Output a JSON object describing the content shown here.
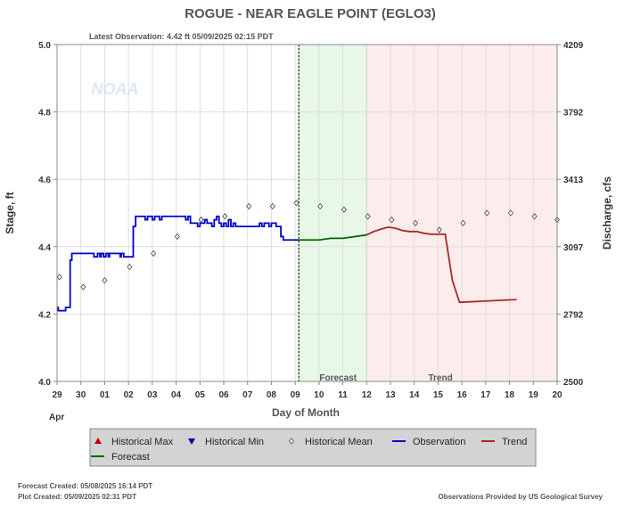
{
  "page": {
    "footer_forecast": "Forecast Created: 05/08/2025 16:14 PDT",
    "footer_plot": "Plot Created: 05/09/2025 02:31 PDT",
    "footer_credit": "Observations Provided by US Geological Survey",
    "watermark": "NOAA",
    "colors": {
      "observation": "#0000cc",
      "forecast": "#006600",
      "trend": "#a52a2a",
      "historical_max": "#cc0000",
      "historical_min": "#0000aa",
      "historical_mean": "#555555",
      "forecast_band": "#e8f8e8",
      "trend_band": "#fdecec",
      "legend_bg": "#d3d3d3"
    }
  },
  "chart_data": {
    "type": "line",
    "title": "ROGUE - NEAR EAGLE POINT  (EGLO3)",
    "subtitle": "Latest Observation: 4.42 ft 05/09/2025 02:15 PDT",
    "xlabel": "Day of Month",
    "ylabel": "Stage, ft",
    "y2label": "Discharge, cfs",
    "month_label": "Apr",
    "x_ticks": [
      "29",
      "30",
      "01",
      "02",
      "03",
      "04",
      "05",
      "06",
      "07",
      "08",
      "09",
      "10",
      "11",
      "12",
      "13",
      "14",
      "15",
      "16",
      "17",
      "18",
      "19",
      "20"
    ],
    "xlim": [
      0,
      21
    ],
    "ylim": [
      4.0,
      5.0
    ],
    "y_ticks": [
      "4.0",
      "4.2",
      "4.4",
      "4.6",
      "4.8",
      "5.0"
    ],
    "y2_ticks": [
      "2500",
      "2792",
      "3097",
      "3413",
      "3792",
      "4209"
    ],
    "grid": true,
    "forecast_region": {
      "label": "Forecast",
      "x_start": 10.15,
      "x_end": 13.0
    },
    "trend_region": {
      "label": "Trend",
      "x_start": 13.0,
      "x_end": 21.0
    },
    "now_x": 10.15,
    "legend": [
      {
        "label": "Historical Max",
        "marker": "triangle-up"
      },
      {
        "label": "Historical Min",
        "marker": "triangle-down"
      },
      {
        "label": "Historical Mean",
        "marker": "diamond"
      },
      {
        "label": "Observation",
        "marker": "line"
      },
      {
        "label": "Trend",
        "marker": "line"
      },
      {
        "label": "Forecast",
        "marker": "line"
      }
    ],
    "series": [
      {
        "name": "Observation",
        "x": [
          0.0,
          0.05,
          0.35,
          0.36,
          0.55,
          0.62,
          1.5,
          1.55,
          1.65,
          1.7,
          1.8,
          1.85,
          1.95,
          2.05,
          2.15,
          2.2,
          2.65,
          2.7,
          2.8,
          2.85,
          3.1,
          3.2,
          3.3,
          3.35,
          3.4,
          3.5,
          3.55,
          3.6,
          3.7,
          3.8,
          3.9,
          4.0,
          4.1,
          4.2,
          4.3,
          4.4,
          4.5,
          4.6,
          4.7,
          4.8,
          4.9,
          5.0,
          5.1,
          5.2,
          5.3,
          5.4,
          5.5,
          5.6,
          5.7,
          5.8,
          5.9,
          6.0,
          6.1,
          6.2,
          6.3,
          6.4,
          6.5,
          6.6,
          6.7,
          6.8,
          6.9,
          7.0,
          7.1,
          7.2,
          7.3,
          7.4,
          7.5,
          7.6,
          7.7,
          7.8,
          7.9,
          8.0,
          8.1,
          8.2,
          8.3,
          8.4,
          8.5,
          8.6,
          8.7,
          8.8,
          8.9,
          9.0,
          9.1,
          9.2,
          9.3,
          9.4,
          9.5,
          9.6,
          9.7,
          9.8,
          9.9,
          10.0,
          10.1,
          10.15
        ],
        "y": [
          4.22,
          4.21,
          4.21,
          4.22,
          4.36,
          4.38,
          4.38,
          4.37,
          4.37,
          4.38,
          4.37,
          4.38,
          4.37,
          4.38,
          4.37,
          4.38,
          4.37,
          4.38,
          4.37,
          4.37,
          4.37,
          4.46,
          4.49,
          4.49,
          4.49,
          4.49,
          4.49,
          4.49,
          4.48,
          4.49,
          4.49,
          4.48,
          4.49,
          4.49,
          4.48,
          4.49,
          4.49,
          4.49,
          4.49,
          4.49,
          4.49,
          4.49,
          4.49,
          4.49,
          4.49,
          4.48,
          4.49,
          4.47,
          4.47,
          4.47,
          4.46,
          4.47,
          4.47,
          4.48,
          4.47,
          4.47,
          4.46,
          4.48,
          4.49,
          4.47,
          4.46,
          4.47,
          4.46,
          4.48,
          4.46,
          4.47,
          4.46,
          4.46,
          4.46,
          4.46,
          4.46,
          4.46,
          4.46,
          4.46,
          4.46,
          4.46,
          4.47,
          4.46,
          4.47,
          4.47,
          4.46,
          4.47,
          4.47,
          4.46,
          4.46,
          4.43,
          4.42,
          4.42,
          4.42,
          4.42,
          4.42,
          4.42,
          4.42,
          4.42
        ]
      },
      {
        "name": "Forecast",
        "x": [
          10.15,
          10.5,
          11.0,
          11.5,
          12.0,
          12.5,
          13.0
        ],
        "y": [
          4.42,
          4.42,
          4.42,
          4.425,
          4.425,
          4.43,
          4.435
        ]
      },
      {
        "name": "Trend",
        "x": [
          13.0,
          13.3,
          13.6,
          13.9,
          14.2,
          14.5,
          14.8,
          15.1,
          15.4,
          15.7,
          16.0,
          16.3,
          16.6,
          16.9,
          17.2,
          17.5,
          17.8,
          18.1,
          18.4,
          18.7,
          19.0,
          19.3
        ],
        "y": [
          4.435,
          4.445,
          4.452,
          4.458,
          4.455,
          4.448,
          4.445,
          4.445,
          4.44,
          4.437,
          4.437,
          4.437,
          4.3,
          4.235,
          4.236,
          4.237,
          4.238,
          4.239,
          4.24,
          4.241,
          4.242,
          4.243
        ]
      },
      {
        "name": "Historical Mean",
        "x": [
          0.1,
          1.1,
          2.0,
          3.05,
          4.05,
          5.05,
          6.05,
          7.05,
          8.05,
          9.05,
          10.05,
          11.05,
          12.05,
          13.05,
          14.05,
          15.05,
          16.05,
          17.05,
          18.05,
          19.05,
          20.05,
          21.0
        ],
        "y": [
          4.31,
          4.28,
          4.3,
          4.34,
          4.38,
          4.43,
          4.48,
          4.49,
          4.52,
          4.52,
          4.53,
          4.52,
          4.51,
          4.49,
          4.48,
          4.47,
          4.45,
          4.47,
          4.5,
          4.5,
          4.49,
          4.48
        ]
      }
    ]
  }
}
